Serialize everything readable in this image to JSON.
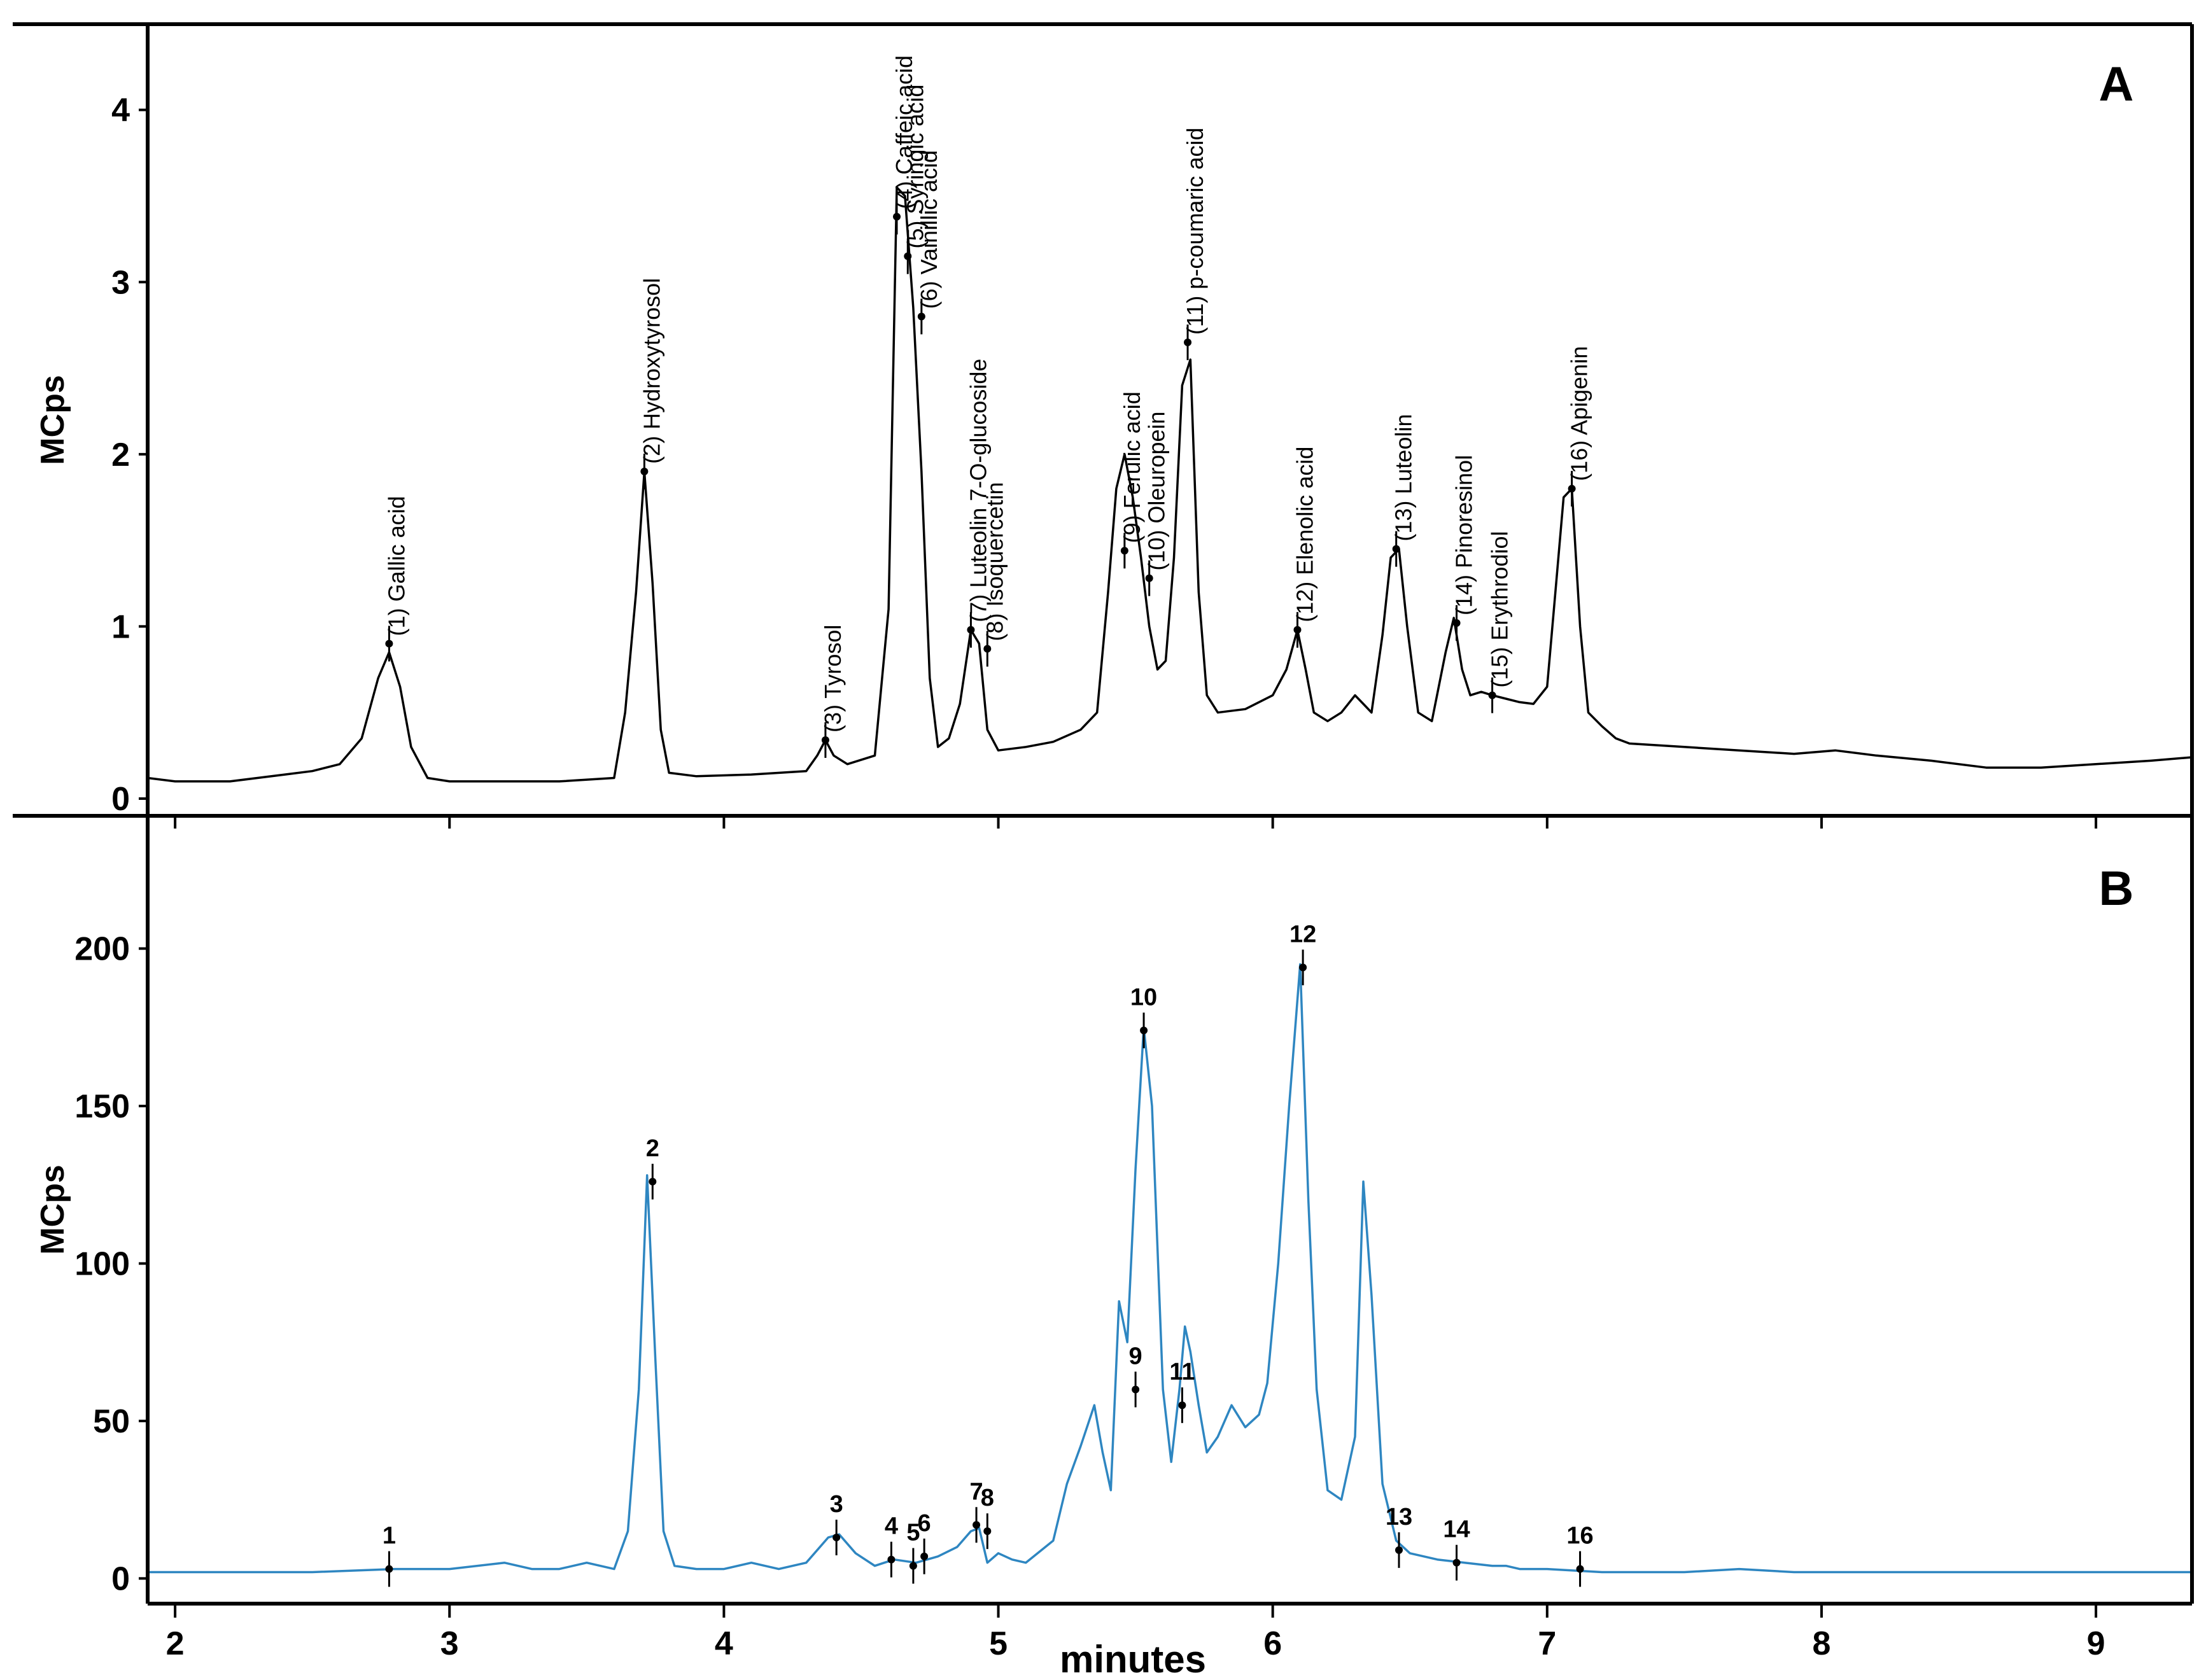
{
  "chart_data": [
    {
      "panel": "A",
      "type": "line",
      "ylabel": "MCps",
      "ylim": [
        -0.1,
        4.35
      ],
      "yticks": [
        "0",
        "1",
        "2",
        "3",
        "4"
      ],
      "xlim": [
        1.9,
        9.35
      ],
      "line_color": "#000000",
      "series": [
        {
          "x": [
            1.9,
            2.0,
            2.1,
            2.2,
            2.3,
            2.4,
            2.5,
            2.6,
            2.68,
            2.74,
            2.78,
            2.82,
            2.86,
            2.92,
            3.0,
            3.2,
            3.4,
            3.6,
            3.64,
            3.68,
            3.71,
            3.74,
            3.77,
            3.8,
            3.9,
            4.1,
            4.3,
            4.34,
            4.37,
            4.4,
            4.45,
            4.55,
            4.6,
            4.63,
            4.66,
            4.69,
            4.72,
            4.75,
            4.78,
            4.82,
            4.86,
            4.9,
            4.93,
            4.96,
            5.0,
            5.1,
            5.2,
            5.3,
            5.36,
            5.4,
            5.43,
            5.46,
            5.49,
            5.52,
            5.55,
            5.58,
            5.61,
            5.64,
            5.67,
            5.7,
            5.73,
            5.76,
            5.8,
            5.9,
            6.0,
            6.05,
            6.09,
            6.12,
            6.15,
            6.2,
            6.25,
            6.3,
            6.33,
            6.36,
            6.4,
            6.43,
            6.46,
            6.49,
            6.53,
            6.58,
            6.63,
            6.66,
            6.69,
            6.72,
            6.76,
            6.8,
            6.85,
            6.9,
            6.95,
            7.0,
            7.03,
            7.06,
            7.09,
            7.12,
            7.15,
            7.2,
            7.25,
            7.3,
            7.5,
            7.7,
            7.9,
            8.05,
            8.2,
            8.4,
            8.6,
            8.8,
            9.0,
            9.2,
            9.35
          ],
          "y": [
            0.12,
            0.1,
            0.1,
            0.1,
            0.12,
            0.14,
            0.16,
            0.2,
            0.35,
            0.7,
            0.85,
            0.65,
            0.3,
            0.12,
            0.1,
            0.1,
            0.1,
            0.12,
            0.5,
            1.2,
            1.9,
            1.25,
            0.4,
            0.15,
            0.13,
            0.14,
            0.16,
            0.25,
            0.34,
            0.25,
            0.2,
            0.25,
            1.1,
            3.55,
            3.5,
            2.85,
            1.9,
            0.7,
            0.3,
            0.35,
            0.55,
            0.98,
            0.9,
            0.4,
            0.28,
            0.3,
            0.33,
            0.4,
            0.5,
            1.2,
            1.8,
            2.0,
            1.75,
            1.4,
            1.0,
            0.75,
            0.8,
            1.4,
            2.4,
            2.55,
            1.2,
            0.6,
            0.5,
            0.52,
            0.6,
            0.75,
            0.98,
            0.75,
            0.5,
            0.45,
            0.5,
            0.6,
            0.55,
            0.5,
            0.95,
            1.4,
            1.45,
            1.0,
            0.5,
            0.45,
            0.85,
            1.05,
            0.75,
            0.6,
            0.62,
            0.6,
            0.58,
            0.56,
            0.55,
            0.65,
            1.2,
            1.75,
            1.8,
            1.0,
            0.5,
            0.42,
            0.35,
            0.32,
            0.3,
            0.28,
            0.26,
            0.28,
            0.25,
            0.22,
            0.18,
            0.18,
            0.2,
            0.22,
            0.24
          ]
        }
      ],
      "peak_labels": [
        {
          "x": 2.78,
          "y": 0.9,
          "text": "(1) Gallic acid"
        },
        {
          "x": 3.71,
          "y": 1.9,
          "text": "(2) Hydroxytyrosol"
        },
        {
          "x": 4.37,
          "y": 0.34,
          "text": "(3) Tyrosol"
        },
        {
          "x": 4.63,
          "y": 3.38,
          "text": "(4) Caffeic acid"
        },
        {
          "x": 4.67,
          "y": 3.15,
          "text": "(5) Syringic acid"
        },
        {
          "x": 4.72,
          "y": 2.8,
          "text": "(6) Vainillic acid"
        },
        {
          "x": 4.9,
          "y": 0.98,
          "text": "(7) Luteolin 7-O-glucoside"
        },
        {
          "x": 4.96,
          "y": 0.87,
          "text": "(8) Isoquercetin"
        },
        {
          "x": 5.46,
          "y": 1.44,
          "text": "(9) Ferulic acid"
        },
        {
          "x": 5.55,
          "y": 1.28,
          "text": "(10) Oleuropein"
        },
        {
          "x": 5.69,
          "y": 2.65,
          "text": "(11) p-coumaric acid"
        },
        {
          "x": 6.09,
          "y": 0.98,
          "text": "(12) Elenolic acid"
        },
        {
          "x": 6.45,
          "y": 1.45,
          "text": "(13) Luteolin"
        },
        {
          "x": 6.67,
          "y": 1.02,
          "text": "(14) Pinoresinol"
        },
        {
          "x": 6.8,
          "y": 0.6,
          "text": "(15) Erythrodiol"
        },
        {
          "x": 7.09,
          "y": 1.8,
          "text": "(16) Apigenin"
        }
      ]
    },
    {
      "panel": "B",
      "type": "line",
      "ylabel": "MCps",
      "ylim": [
        -8,
        228
      ],
      "yticks": [
        "0",
        "50",
        "100",
        "150",
        "200"
      ],
      "xlim": [
        1.9,
        9.35
      ],
      "xticks": [
        "2",
        "3",
        "4",
        "5",
        "6",
        "7",
        "8",
        "9"
      ],
      "xlabel": "minutes",
      "line_color": "#2e86c1",
      "series": [
        {
          "x": [
            1.9,
            2.2,
            2.5,
            2.8,
            3.0,
            3.2,
            3.3,
            3.4,
            3.5,
            3.6,
            3.65,
            3.69,
            3.72,
            3.75,
            3.78,
            3.82,
            3.9,
            4.0,
            4.1,
            4.2,
            4.3,
            4.38,
            4.42,
            4.48,
            4.55,
            4.62,
            4.7,
            4.78,
            4.85,
            4.9,
            4.93,
            4.96,
            5.0,
            5.05,
            5.1,
            5.2,
            5.25,
            5.3,
            5.35,
            5.38,
            5.41,
            5.44,
            5.47,
            5.5,
            5.53,
            5.56,
            5.6,
            5.63,
            5.66,
            5.68,
            5.7,
            5.73,
            5.76,
            5.8,
            5.85,
            5.9,
            5.95,
            5.98,
            6.02,
            6.06,
            6.1,
            6.13,
            6.16,
            6.2,
            6.25,
            6.3,
            6.33,
            6.36,
            6.4,
            6.45,
            6.5,
            6.6,
            6.7,
            6.8,
            6.85,
            6.9,
            7.0,
            7.2,
            7.5,
            7.7,
            7.9,
            8.1,
            8.4,
            8.7,
            9.0,
            9.3,
            9.35
          ],
          "y": [
            2,
            2,
            2,
            3,
            3,
            5,
            3,
            3,
            5,
            3,
            15,
            60,
            128,
            70,
            15,
            4,
            3,
            3,
            5,
            3,
            5,
            13,
            14,
            8,
            4,
            6,
            5,
            7,
            10,
            15,
            16,
            5,
            8,
            6,
            5,
            12,
            30,
            42,
            55,
            40,
            28,
            88,
            75,
            130,
            175,
            150,
            60,
            37,
            60,
            80,
            72,
            55,
            40,
            45,
            55,
            48,
            52,
            62,
            100,
            150,
            195,
            120,
            60,
            28,
            25,
            45,
            126,
            90,
            30,
            12,
            8,
            6,
            5,
            4,
            4,
            3,
            3,
            2,
            2,
            3,
            2,
            2,
            2,
            2,
            2,
            2,
            2
          ]
        }
      ],
      "peak_labels": [
        {
          "x": 2.78,
          "y": 3,
          "text": "1"
        },
        {
          "x": 3.74,
          "y": 126,
          "text": "2"
        },
        {
          "x": 4.41,
          "y": 13,
          "text": "3"
        },
        {
          "x": 4.61,
          "y": 6,
          "text": "4"
        },
        {
          "x": 4.69,
          "y": 4,
          "text": "5"
        },
        {
          "x": 4.73,
          "y": 7,
          "text": "6"
        },
        {
          "x": 4.92,
          "y": 17,
          "text": "7"
        },
        {
          "x": 4.96,
          "y": 15,
          "text": "8"
        },
        {
          "x": 5.5,
          "y": 60,
          "text": "9"
        },
        {
          "x": 5.53,
          "y": 174,
          "text": "10"
        },
        {
          "x": 5.67,
          "y": 55,
          "text": "11"
        },
        {
          "x": 6.11,
          "y": 194,
          "text": "12"
        },
        {
          "x": 6.46,
          "y": 9,
          "text": "13"
        },
        {
          "x": 6.67,
          "y": 5,
          "text": "14"
        },
        {
          "x": 7.12,
          "y": 3,
          "text": "16"
        }
      ]
    }
  ]
}
